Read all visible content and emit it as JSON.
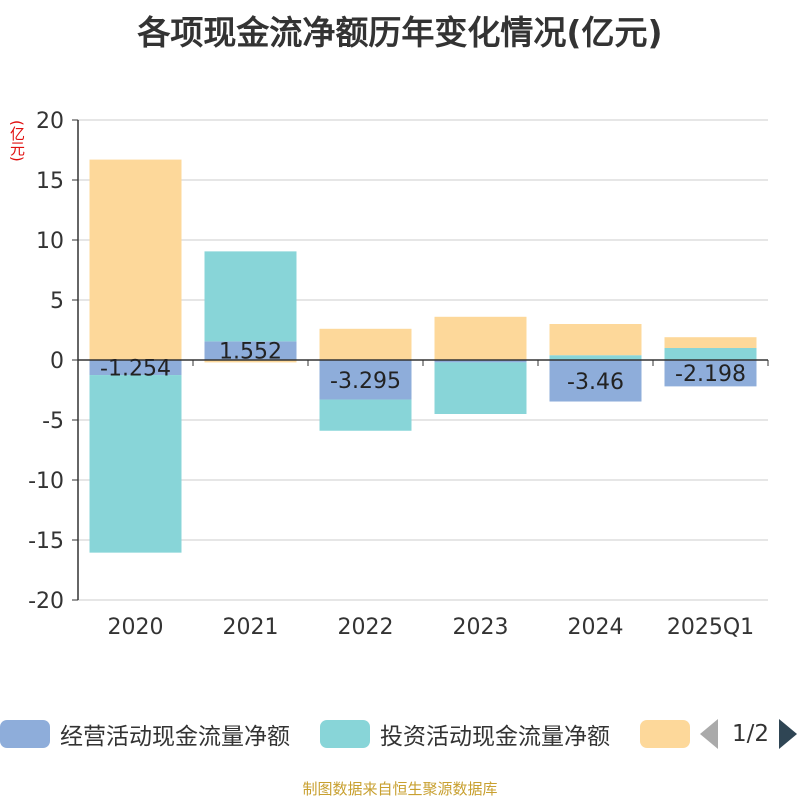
{
  "chart_data": {
    "type": "bar",
    "stacked": true,
    "title": "各项现金流净额历年变化情况(亿元)",
    "ylabel": "(亿元)",
    "ylim": [
      -20,
      20
    ],
    "yticks": [
      -20,
      -15,
      -10,
      -5,
      0,
      5,
      10,
      15,
      20
    ],
    "categories": [
      "2020",
      "2021",
      "2022",
      "2023",
      "2024",
      "2025Q1"
    ],
    "series": [
      {
        "name": "经营活动现金流量净额",
        "color": "#8eadda",
        "values": [
          -1.254,
          1.552,
          -3.295,
          -0.2,
          -3.46,
          -2.198
        ],
        "labels": [
          "-1.254",
          "1.552",
          "-3.295",
          "",
          "-3.46",
          "-2.198"
        ]
      },
      {
        "name": "投资活动现金流量净额",
        "color": "#88d5d8",
        "values": [
          -14.8,
          7.5,
          -2.6,
          -4.3,
          0.4,
          1.0
        ]
      },
      {
        "name": "",
        "color": "#fdd89a",
        "values": [
          16.7,
          -0.2,
          2.6,
          3.6,
          2.6,
          0.9
        ]
      }
    ],
    "legend_position": "bottom"
  },
  "legend": {
    "page_indicator": "1/2"
  },
  "footer": {
    "source": "制图数据来自恒生聚源数据库"
  }
}
